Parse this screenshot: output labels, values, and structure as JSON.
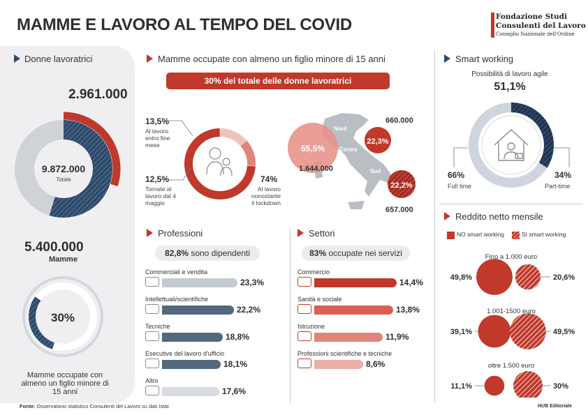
{
  "title": "MAMME E LAVORO AL TEMPO DEL COVID",
  "logo": {
    "line1": "Fondazione Studi",
    "line2": "Consulenti del Lavoro",
    "line3": "Consiglio Nazionale dell'Ordine"
  },
  "left": {
    "heading": "Donne lavoratrici",
    "top_value": "2.961.000",
    "total_value": "9.872.000",
    "total_label": "Totale",
    "mamme_value": "5.400.000",
    "mamme_label": "Mamme",
    "pct_value": "30%",
    "pct_caption": "Mamme occupate con almeno un figlio minore di 15 anni"
  },
  "middle": {
    "heading": "Mamme occupate con almeno un figlio minore di 15 anni",
    "banner": "30% del totale delle donne lavoratrici",
    "donut": [
      {
        "value": "13,5%",
        "label": "Al lavoro entro fine mese"
      },
      {
        "value": "12,5%",
        "label": "Tornate al lavoro dal 4 maggio"
      },
      {
        "value": "74%",
        "label": "Al lavoro nonostante il lockdown"
      }
    ],
    "map": {
      "nord_label": "Nord",
      "centro_label": "Centro",
      "sud_label": "Sud",
      "nord_pct": "55,5%",
      "nord_value": "1.644.000",
      "centro_pct": "22,3%",
      "centro_value": "660.000",
      "sud_pct": "22,2%",
      "sud_value": "657.000"
    }
  },
  "professioni": {
    "heading": "Professioni",
    "pill_value": "82,8%",
    "pill_text": "sono dipendenti",
    "items": [
      {
        "label": "Commerciali e vendita",
        "value": "23,3%"
      },
      {
        "label": "Intellettuali/scientifiche",
        "value": "22,2%"
      },
      {
        "label": "Tecniche",
        "value": "18,8%"
      },
      {
        "label": "Esecutive del lavoro d'ufficio",
        "value": "18,1%"
      },
      {
        "label": "Altro",
        "value": "17,6%"
      }
    ]
  },
  "settori": {
    "heading": "Settori",
    "pill_value": "83%",
    "pill_text": "occupate nei servizi",
    "items": [
      {
        "label": "Commercio",
        "value": "14,4%"
      },
      {
        "label": "Sanità e sociale",
        "value": "13,8%"
      },
      {
        "label": "Istruzione",
        "value": "11,9%"
      },
      {
        "label": "Professioni scientifiche e tecniche",
        "value": "8,6%"
      }
    ]
  },
  "smart": {
    "heading": "Smart working",
    "subtitle": "Possibilità di lavoro agile",
    "value": "51,1%",
    "full_pct": "66%",
    "full_label": "Full time",
    "part_pct": "34%",
    "part_label": "Part-time"
  },
  "reddito": {
    "heading": "Reddito netto mensile",
    "legend_no": "NO smart working",
    "legend_si": "SI smart working",
    "groups": [
      {
        "label": "Fino a 1.000 euro",
        "no": "49,8%",
        "si": "20,6%"
      },
      {
        "label": "1.001-1500 euro",
        "no": "39,1%",
        "si": "49,5%"
      },
      {
        "label": "oltre 1.500 euro",
        "no": "11,1%",
        "si": "30%"
      }
    ]
  },
  "source": {
    "label": "Fonte",
    "text": ": Osservatorio statistico Consulenti del Lavoro su dati Istat"
  },
  "credit": "HUB Editoriale",
  "chart_data": [
    {
      "type": "pie",
      "categories": [
        "Mamme occupate con almeno un figlio minore di 15 anni",
        "Altre"
      ],
      "values": [
        2961000,
        6911000
      ]
    },
    {
      "type": "pie",
      "categories": [
        "Al lavoro entro fine mese",
        "Tornate al lavoro dal 4 maggio",
        "Al lavoro nonostante il lockdown"
      ],
      "values": [
        13.5,
        12.5,
        74
      ]
    },
    {
      "type": "pie",
      "categories": [
        "Full time",
        "Part-time"
      ],
      "values": [
        66,
        34
      ]
    },
    {
      "type": "bar",
      "categories": [
        "Commerciali e vendita",
        "Intellettuali/scientifiche",
        "Tecniche",
        "Esecutive del lavoro d'ufficio",
        "Altro"
      ],
      "values": [
        23.3,
        22.2,
        18.8,
        18.1,
        17.6
      ]
    },
    {
      "type": "bar",
      "categories": [
        "Commercio",
        "Sanità e sociale",
        "Istruzione",
        "Professioni scientifiche e tecniche"
      ],
      "values": [
        14.4,
        13.8,
        11.9,
        8.6
      ]
    },
    {
      "type": "bar",
      "categories": [
        "Fino a 1.000 euro",
        "1.001-1500 euro",
        "oltre 1.500 euro"
      ],
      "series": [
        {
          "name": "NO smart working",
          "values": [
            49.8,
            39.1,
            11.1
          ]
        },
        {
          "name": "SI smart working",
          "values": [
            20.6,
            49.5,
            30
          ]
        }
      ]
    }
  ]
}
